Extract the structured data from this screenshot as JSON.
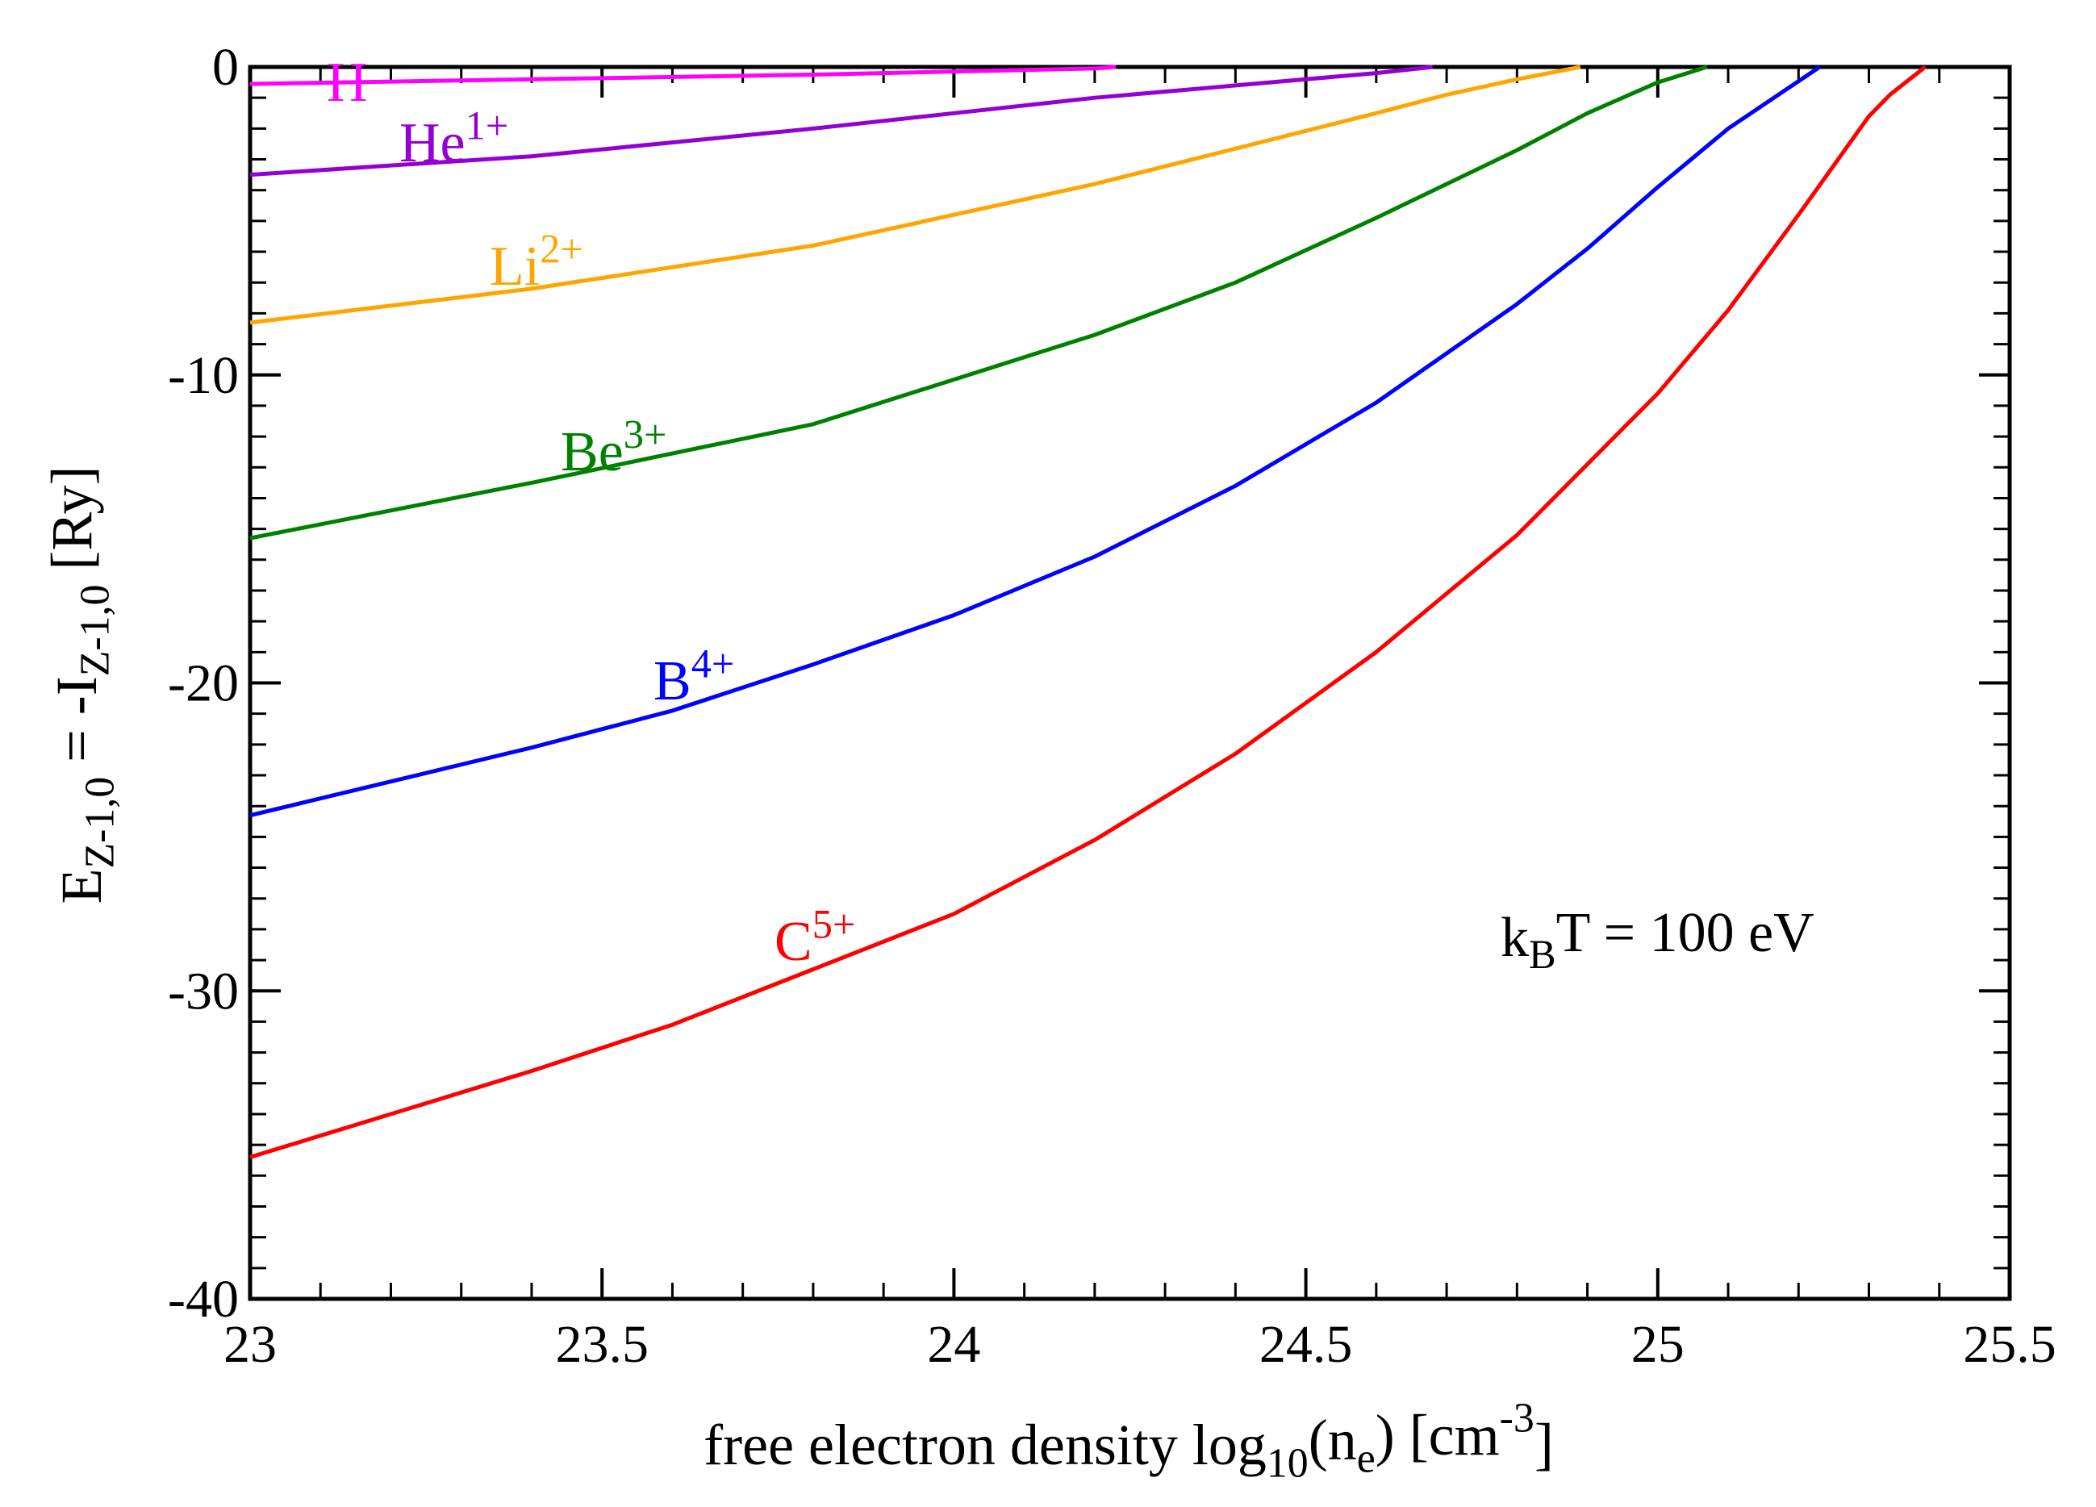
{
  "chart_data": {
    "type": "line",
    "xlabel": [
      {
        "t": "free electron density log"
      },
      {
        "t": "10",
        "s": "sub"
      },
      {
        "t": "(n"
      },
      {
        "t": "e",
        "s": "sub"
      },
      {
        "t": ") [cm"
      },
      {
        "t": "-3",
        "s": "sup"
      },
      {
        "t": "]"
      }
    ],
    "ylabel": [
      {
        "t": "E"
      },
      {
        "t": "Z-1,0",
        "s": "sub"
      },
      {
        "t": " = -I"
      },
      {
        "t": "Z-1,0",
        "s": "sub"
      },
      {
        "t": " [Ry]"
      }
    ],
    "annotation": [
      {
        "t": "k"
      },
      {
        "t": "B",
        "s": "sub"
      },
      {
        "t": "T = 100 eV"
      }
    ],
    "xlim": [
      23,
      25.5
    ],
    "ylim": [
      -40,
      0
    ],
    "xticks": [
      23,
      23.5,
      24,
      24.5,
      25,
      25.5
    ],
    "yticks": [
      -40,
      -30,
      -20,
      -10,
      0
    ],
    "xminor_step": 0.1,
    "yminor_step": 1,
    "series": [
      {
        "label": [
          {
            "t": "H"
          }
        ],
        "color": "#ff00ff",
        "x": [
          23,
          23.4,
          23.8,
          24.2,
          24.23
        ],
        "values": [
          -0.55,
          -0.4,
          -0.25,
          -0.05,
          0
        ]
      },
      {
        "label": [
          {
            "t": "He"
          },
          {
            "t": "1+",
            "s": "sup"
          }
        ],
        "color": "#9400d3",
        "x": [
          23,
          23.4,
          23.8,
          24.0,
          24.2,
          24.4,
          24.6,
          24.68
        ],
        "values": [
          -3.5,
          -2.9,
          -2.0,
          -1.5,
          -1.0,
          -0.6,
          -0.2,
          0
        ]
      },
      {
        "label": [
          {
            "t": "Li"
          },
          {
            "t": "2+",
            "s": "sup"
          }
        ],
        "color": "#ffa500",
        "x": [
          23,
          23.4,
          23.8,
          24.2,
          24.6,
          24.7,
          24.8,
          24.89
        ],
        "values": [
          -8.3,
          -7.2,
          -5.8,
          -3.8,
          -1.5,
          -0.9,
          -0.4,
          0
        ]
      },
      {
        "label": [
          {
            "t": "Be"
          },
          {
            "t": "3+",
            "s": "sup"
          }
        ],
        "color": "#008000",
        "x": [
          23,
          23.4,
          23.8,
          24.2,
          24.4,
          24.6,
          24.8,
          24.9,
          25.0,
          25.07
        ],
        "values": [
          -15.3,
          -13.5,
          -11.6,
          -8.7,
          -7.0,
          -4.9,
          -2.7,
          -1.5,
          -0.5,
          0
        ]
      },
      {
        "label": [
          {
            "t": "B"
          },
          {
            "t": "4+",
            "s": "sup"
          }
        ],
        "color": "#0000ff",
        "x": [
          23,
          23.4,
          23.6,
          23.8,
          24.0,
          24.2,
          24.4,
          24.6,
          24.8,
          24.9,
          25.0,
          25.1,
          25.23
        ],
        "values": [
          -24.3,
          -22.1,
          -20.9,
          -19.4,
          -17.8,
          -15.9,
          -13.6,
          -10.9,
          -7.7,
          -5.9,
          -3.9,
          -2.0,
          0
        ]
      },
      {
        "label": [
          {
            "t": "C"
          },
          {
            "t": "5+",
            "s": "sup"
          }
        ],
        "color": "#ff0000",
        "x": [
          23,
          23.4,
          23.6,
          23.8,
          24.0,
          24.2,
          24.4,
          24.6,
          24.8,
          25.0,
          25.1,
          25.2,
          25.3,
          25.33,
          25.38
        ],
        "values": [
          -35.4,
          -32.6,
          -31.1,
          -29.3,
          -27.5,
          -25.1,
          -22.3,
          -19.0,
          -15.2,
          -10.6,
          -7.9,
          -4.8,
          -1.6,
          -0.9,
          0
        ]
      }
    ]
  }
}
